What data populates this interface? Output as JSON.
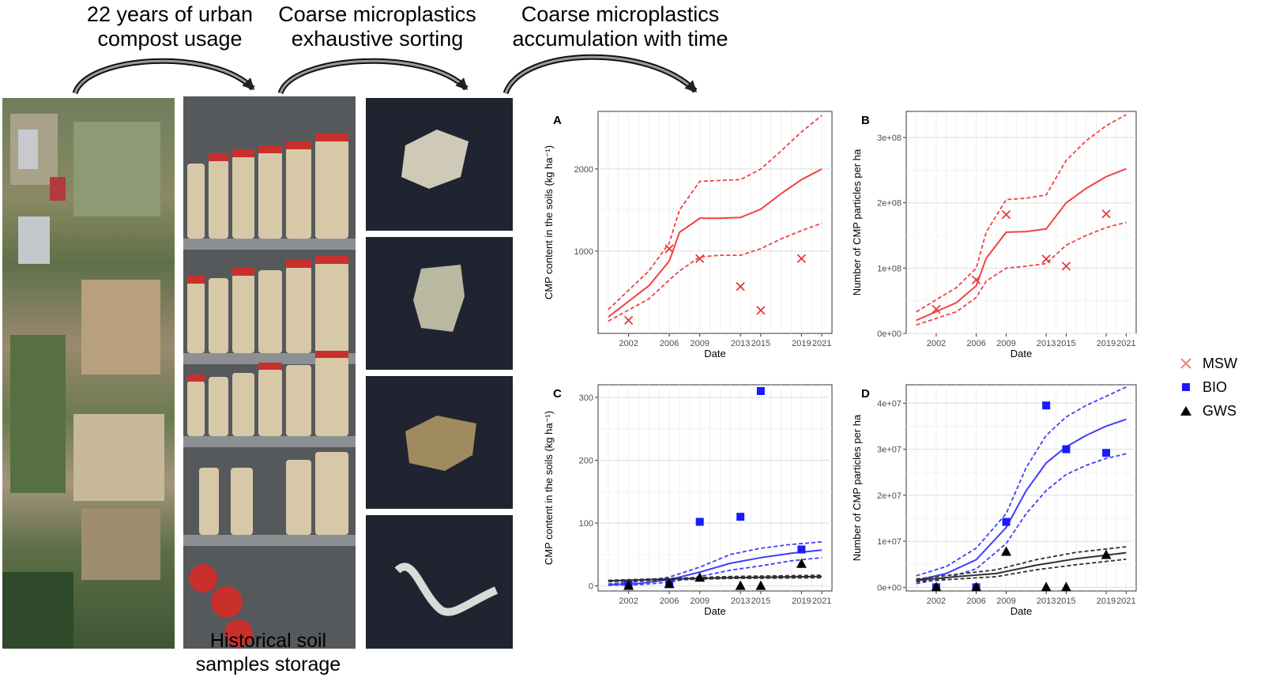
{
  "header": {
    "step1": [
      "22 years of urban",
      "compost usage"
    ],
    "step2": [
      "Coarse microplastics",
      "exhaustive  sorting"
    ],
    "step3": [
      "Coarse microplastics",
      "accumulation with time"
    ]
  },
  "caption": [
    "Historical soil",
    "samples storage"
  ],
  "legend": [
    {
      "label": "MSW",
      "color": "#f08080",
      "symbol": "cross"
    },
    {
      "label": "BIO",
      "color": "#1a1aff",
      "symbol": "square"
    },
    {
      "label": "GWS",
      "color": "#000000",
      "symbol": "triangle"
    }
  ],
  "chart_data": [
    {
      "panel": "A",
      "type": "line",
      "xlabel": "Date",
      "ylabel": "CMP content in the soils (kg ha⁻¹)",
      "xlim": [
        1999,
        2022
      ],
      "ylim": [
        0,
        2700
      ],
      "xticks": [
        2002,
        2006,
        2009,
        2013,
        2015,
        2019,
        2021
      ],
      "yticks": [
        1000,
        2000
      ],
      "ytick_labels": [
        "1000",
        "2000"
      ],
      "series": [
        {
          "name": "MSW",
          "color": "#f24141",
          "fit": [
            [
              2000,
              200
            ],
            [
              2004,
              580
            ],
            [
              2006,
              880
            ],
            [
              2007,
              1230
            ],
            [
              2009,
              1400
            ],
            [
              2011,
              1400
            ],
            [
              2013,
              1410
            ],
            [
              2015,
              1510
            ],
            [
              2017,
              1700
            ],
            [
              2019,
              1870
            ],
            [
              2021,
              2000
            ]
          ],
          "upper": [
            [
              2000,
              290
            ],
            [
              2004,
              760
            ],
            [
              2006,
              1100
            ],
            [
              2007,
              1500
            ],
            [
              2009,
              1850
            ],
            [
              2011,
              1860
            ],
            [
              2013,
              1870
            ],
            [
              2015,
              2000
            ],
            [
              2017,
              2220
            ],
            [
              2019,
              2450
            ],
            [
              2021,
              2650
            ]
          ],
          "lower": [
            [
              2000,
              150
            ],
            [
              2004,
              420
            ],
            [
              2006,
              650
            ],
            [
              2007,
              760
            ],
            [
              2009,
              930
            ],
            [
              2011,
              950
            ],
            [
              2013,
              950
            ],
            [
              2015,
              1030
            ],
            [
              2017,
              1150
            ],
            [
              2019,
              1250
            ],
            [
              2021,
              1340
            ]
          ],
          "points": [
            [
              2002,
              160
            ],
            [
              2006,
              1030
            ],
            [
              2009,
              910
            ],
            [
              2013,
              570
            ],
            [
              2015,
              280
            ],
            [
              2019,
              910
            ]
          ],
          "marker": "cross"
        }
      ]
    },
    {
      "panel": "B",
      "type": "line",
      "xlabel": "Date",
      "ylabel": "Number of CMP particles per ha",
      "xlim": [
        1999,
        2022
      ],
      "ylim": [
        0,
        340000000
      ],
      "xticks": [
        2002,
        2006,
        2009,
        2013,
        2015,
        2019,
        2021
      ],
      "yticks": [
        0,
        100000000,
        200000000,
        300000000
      ],
      "ytick_labels": [
        "0e+00",
        "1e+08",
        "2e+08",
        "3e+08"
      ],
      "series": [
        {
          "name": "MSW",
          "color": "#f24141",
          "fit": [
            [
              2000,
              20000000
            ],
            [
              2004,
              47000000
            ],
            [
              2006,
              73000000
            ],
            [
              2007,
              115000000
            ],
            [
              2009,
              155000000
            ],
            [
              2011,
              156000000
            ],
            [
              2013,
              160000000
            ],
            [
              2015,
              200000000
            ],
            [
              2017,
              222000000
            ],
            [
              2019,
              240000000
            ],
            [
              2021,
              252000000
            ]
          ],
          "upper": [
            [
              2000,
              33000000
            ],
            [
              2004,
              70000000
            ],
            [
              2006,
              100000000
            ],
            [
              2007,
              155000000
            ],
            [
              2009,
              205000000
            ],
            [
              2011,
              207000000
            ],
            [
              2013,
              212000000
            ],
            [
              2015,
              265000000
            ],
            [
              2017,
              295000000
            ],
            [
              2019,
              318000000
            ],
            [
              2021,
              335000000
            ]
          ],
          "lower": [
            [
              2000,
              13000000
            ],
            [
              2004,
              33000000
            ],
            [
              2006,
              55000000
            ],
            [
              2007,
              80000000
            ],
            [
              2009,
              100000000
            ],
            [
              2011,
              103000000
            ],
            [
              2013,
              107000000
            ],
            [
              2015,
              135000000
            ],
            [
              2017,
              150000000
            ],
            [
              2019,
              162000000
            ],
            [
              2021,
              170000000
            ]
          ],
          "points": [
            [
              2002,
              37000000
            ],
            [
              2006,
              82000000
            ],
            [
              2009,
              182000000
            ],
            [
              2013,
              114000000
            ],
            [
              2015,
              103000000
            ],
            [
              2019,
              183000000
            ]
          ],
          "marker": "cross"
        }
      ]
    },
    {
      "panel": "C",
      "type": "line",
      "xlabel": "Date",
      "ylabel": "CMP content in the soils (kg ha⁻¹)",
      "xlim": [
        1999,
        2022
      ],
      "ylim": [
        -8,
        320
      ],
      "xticks": [
        2002,
        2006,
        2009,
        2013,
        2015,
        2019,
        2021
      ],
      "yticks": [
        0,
        100,
        200,
        300
      ],
      "ytick_labels": [
        "0",
        "100",
        "200",
        "300"
      ],
      "series": [
        {
          "name": "BIO",
          "color": "#3d3dff",
          "fit": [
            [
              2000,
              2
            ],
            [
              2003,
              4
            ],
            [
              2006,
              10
            ],
            [
              2009,
              22
            ],
            [
              2012,
              36
            ],
            [
              2015,
              45
            ],
            [
              2018,
              52
            ],
            [
              2021,
              57
            ]
          ],
          "upper": [
            [
              2000,
              3
            ],
            [
              2003,
              7
            ],
            [
              2006,
              14
            ],
            [
              2009,
              30
            ],
            [
              2012,
              50
            ],
            [
              2015,
              60
            ],
            [
              2018,
              66
            ],
            [
              2021,
              70
            ]
          ],
          "lower": [
            [
              2000,
              1
            ],
            [
              2003,
              2
            ],
            [
              2006,
              6
            ],
            [
              2009,
              15
            ],
            [
              2012,
              25
            ],
            [
              2015,
              32
            ],
            [
              2018,
              40
            ],
            [
              2021,
              45
            ]
          ],
          "points": [
            [
              2002,
              2
            ],
            [
              2006,
              3
            ],
            [
              2009,
              102
            ],
            [
              2013,
              110
            ],
            [
              2015,
              310
            ],
            [
              2019,
              58
            ]
          ],
          "marker": "square"
        },
        {
          "name": "GWS",
          "color": "#303030",
          "fit": [
            [
              2000,
              8
            ],
            [
              2006,
              11
            ],
            [
              2012,
              13
            ],
            [
              2021,
              15
            ]
          ],
          "upper": [
            [
              2000,
              9
            ],
            [
              2006,
              12
            ],
            [
              2012,
              15
            ],
            [
              2021,
              17
            ]
          ],
          "lower": [
            [
              2000,
              7
            ],
            [
              2006,
              9.5
            ],
            [
              2012,
              12
            ],
            [
              2021,
              13
            ]
          ],
          "points": [
            [
              2002,
              0
            ],
            [
              2006,
              3
            ],
            [
              2009,
              13
            ],
            [
              2013,
              0
            ],
            [
              2015,
              0
            ],
            [
              2019,
              35
            ]
          ],
          "marker": "triangle"
        }
      ]
    },
    {
      "panel": "D",
      "type": "line",
      "xlabel": "Date",
      "ylabel": "Number of CMP particles per ha",
      "xlim": [
        1999,
        2022
      ],
      "ylim": [
        -800000,
        44000000
      ],
      "xticks": [
        2002,
        2006,
        2009,
        2013,
        2015,
        2019,
        2021
      ],
      "yticks": [
        0,
        10000000,
        20000000,
        30000000,
        40000000
      ],
      "ytick_labels": [
        "0e+00",
        "1e+07",
        "2e+07",
        "3e+07",
        "4e+07"
      ],
      "series": [
        {
          "name": "BIO",
          "color": "#3d3dff",
          "fit": [
            [
              2000,
              1500000
            ],
            [
              2003,
              3000000
            ],
            [
              2006,
              6000000
            ],
            [
              2009,
              13000000
            ],
            [
              2011,
              21000000
            ],
            [
              2013,
              27000000
            ],
            [
              2015,
              30500000
            ],
            [
              2017,
              33000000
            ],
            [
              2019,
              35000000
            ],
            [
              2021,
              36500000
            ]
          ],
          "upper": [
            [
              2000,
              2500000
            ],
            [
              2003,
              4500000
            ],
            [
              2006,
              8500000
            ],
            [
              2009,
              16000000
            ],
            [
              2011,
              26000000
            ],
            [
              2013,
              33000000
            ],
            [
              2015,
              37000000
            ],
            [
              2017,
              39500000
            ],
            [
              2019,
              41500000
            ],
            [
              2021,
              43500000
            ]
          ],
          "lower": [
            [
              2000,
              800000
            ],
            [
              2003,
              2000000
            ],
            [
              2006,
              4000000
            ],
            [
              2009,
              9500000
            ],
            [
              2011,
              16000000
            ],
            [
              2013,
              21000000
            ],
            [
              2015,
              24500000
            ],
            [
              2017,
              26500000
            ],
            [
              2019,
              28000000
            ],
            [
              2021,
              29000000
            ]
          ],
          "points": [
            [
              2002,
              0
            ],
            [
              2006,
              0
            ],
            [
              2009,
              14200000
            ],
            [
              2013,
              39500000
            ],
            [
              2015,
              30000000
            ],
            [
              2019,
              29200000
            ]
          ],
          "marker": "square"
        },
        {
          "name": "GWS",
          "color": "#303030",
          "fit": [
            [
              2000,
              1500000
            ],
            [
              2004,
              2300000
            ],
            [
              2008,
              3000000
            ],
            [
              2012,
              4800000
            ],
            [
              2016,
              6200000
            ],
            [
              2021,
              7500000
            ]
          ],
          "upper": [
            [
              2000,
              1800000
            ],
            [
              2004,
              2800000
            ],
            [
              2008,
              3800000
            ],
            [
              2012,
              6000000
            ],
            [
              2016,
              7600000
            ],
            [
              2021,
              8800000
            ]
          ],
          "lower": [
            [
              2000,
              1200000
            ],
            [
              2004,
              1800000
            ],
            [
              2008,
              2300000
            ],
            [
              2012,
              3800000
            ],
            [
              2016,
              4900000
            ],
            [
              2021,
              6100000
            ]
          ],
          "points": [
            [
              2002,
              0
            ],
            [
              2006,
              0
            ],
            [
              2009,
              7700000
            ],
            [
              2013,
              0
            ],
            [
              2015,
              0
            ],
            [
              2019,
              7000000
            ]
          ],
          "marker": "triangle"
        }
      ]
    }
  ]
}
